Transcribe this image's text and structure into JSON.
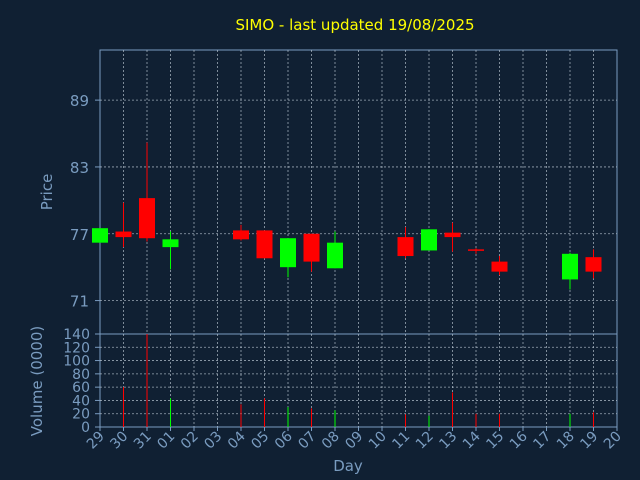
{
  "title": "SIMO - last updated 19/08/2025",
  "colors": {
    "background": "#102033",
    "axis": "#7a9cc0",
    "grid": "#c8d4e0",
    "title": "#ffff00",
    "up": "#00ff00",
    "down": "#ff0000"
  },
  "chart_data": [
    {
      "type": "candlestick",
      "title": "SIMO - last updated 19/08/2025",
      "ylabel": "Price",
      "ylim": [
        68.0,
        93.5
      ],
      "yticks": [
        71,
        77,
        83,
        89
      ],
      "grid": true,
      "candles": [
        {
          "day": "29",
          "open": 76.2,
          "high": 77.5,
          "low": 76.2,
          "close": 77.5,
          "dir": "up"
        },
        {
          "day": "30",
          "open": 77.2,
          "high": 79.8,
          "low": 75.8,
          "close": 76.7,
          "dir": "down"
        },
        {
          "day": "31",
          "open": 80.2,
          "high": 85.2,
          "low": 76.3,
          "close": 76.6,
          "dir": "down"
        },
        {
          "day": "01",
          "open": 75.8,
          "high": 77.2,
          "low": 73.8,
          "close": 76.5,
          "dir": "up"
        },
        {
          "day": "04",
          "open": 77.3,
          "high": 77.8,
          "low": 76.4,
          "close": 76.5,
          "dir": "down"
        },
        {
          "day": "05",
          "open": 77.3,
          "high": 77.3,
          "low": 74.8,
          "close": 74.8,
          "dir": "down"
        },
        {
          "day": "06",
          "open": 74.0,
          "high": 76.6,
          "low": 73.1,
          "close": 76.6,
          "dir": "up"
        },
        {
          "day": "07",
          "open": 77.0,
          "high": 77.0,
          "low": 73.6,
          "close": 74.5,
          "dir": "down"
        },
        {
          "day": "08",
          "open": 73.9,
          "high": 77.2,
          "low": 73.9,
          "close": 76.2,
          "dir": "up"
        },
        {
          "day": "11",
          "open": 76.7,
          "high": 77.6,
          "low": 74.8,
          "close": 75.0,
          "dir": "down"
        },
        {
          "day": "12",
          "open": 75.5,
          "high": 77.4,
          "low": 75.5,
          "close": 77.4,
          "dir": "up"
        },
        {
          "day": "13",
          "open": 77.1,
          "high": 78.0,
          "low": 75.4,
          "close": 76.7,
          "dir": "down"
        },
        {
          "day": "14",
          "open": 75.6,
          "high": 75.7,
          "low": 75.2,
          "close": 75.5,
          "dir": "down"
        },
        {
          "day": "15",
          "open": 74.5,
          "high": 75.0,
          "low": 73.3,
          "close": 73.6,
          "dir": "down"
        },
        {
          "day": "18",
          "open": 72.9,
          "high": 75.3,
          "low": 72.0,
          "close": 75.2,
          "dir": "up"
        },
        {
          "day": "19",
          "open": 74.9,
          "high": 75.6,
          "low": 73.0,
          "close": 73.6,
          "dir": "down"
        }
      ]
    },
    {
      "type": "bar",
      "ylabel": "Volume (0000)",
      "xlabel": "Day",
      "ylim": [
        0,
        140
      ],
      "yticks": [
        0,
        20,
        40,
        60,
        80,
        100,
        120,
        140
      ],
      "categories": [
        "29",
        "30",
        "31",
        "01",
        "02",
        "03",
        "04",
        "05",
        "06",
        "07",
        "08",
        "09",
        "10",
        "11",
        "12",
        "13",
        "14",
        "15",
        "16",
        "17",
        "18",
        "19",
        "20"
      ],
      "values": [
        0,
        60,
        140,
        43,
        0,
        0,
        34,
        43,
        30,
        28,
        25,
        0,
        0,
        19,
        17,
        52,
        20,
        20,
        0,
        0,
        20,
        22,
        0
      ],
      "bar_dirs": [
        "up",
        "down",
        "down",
        "up",
        "up",
        "up",
        "down",
        "down",
        "up",
        "down",
        "up",
        "up",
        "up",
        "down",
        "up",
        "down",
        "down",
        "down",
        "up",
        "up",
        "up",
        "down",
        "up"
      ]
    }
  ]
}
